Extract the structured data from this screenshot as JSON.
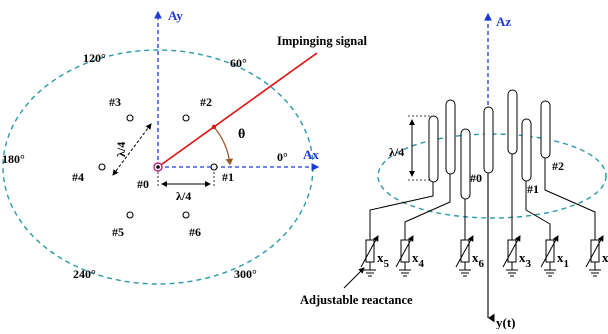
{
  "colors": {
    "axis_blue": "#1f3bd6",
    "circle_teal": "#2a9aa8",
    "signal_red": "#e01010",
    "angle_brown": "#9a5a2a",
    "ink": "#000000"
  },
  "left_diagram": {
    "axis_y_label": "Ay",
    "axis_x_label": "Ax",
    "signal_label": "Impinging signal",
    "theta": "θ",
    "spacing_label_h": "λ/4",
    "spacing_label_v": "λ/4",
    "angles": {
      "a0": "0°",
      "a60": "60°",
      "a120": "120°",
      "a180": "180°",
      "a240": "240°",
      "a300": "300°"
    },
    "elements": {
      "e0": "#0",
      "e1": "#1",
      "e2": "#2",
      "e3": "#3",
      "e4": "#4",
      "e5": "#5",
      "e6": "#6"
    }
  },
  "right_diagram": {
    "axis_z_label": "Az",
    "output_label": "y(t)",
    "height_label": "λ/4",
    "element_labels": {
      "e0": "#0",
      "e1": "#1",
      "e2": "#2"
    },
    "reactance_caption": "Adjustable reactance",
    "reactances": [
      {
        "base": "x",
        "sub": "5"
      },
      {
        "base": "x",
        "sub": "4"
      },
      {
        "base": "x",
        "sub": "6"
      },
      {
        "base": "x",
        "sub": "3"
      },
      {
        "base": "x",
        "sub": "1"
      },
      {
        "base": "x",
        "sub": "2"
      }
    ]
  }
}
